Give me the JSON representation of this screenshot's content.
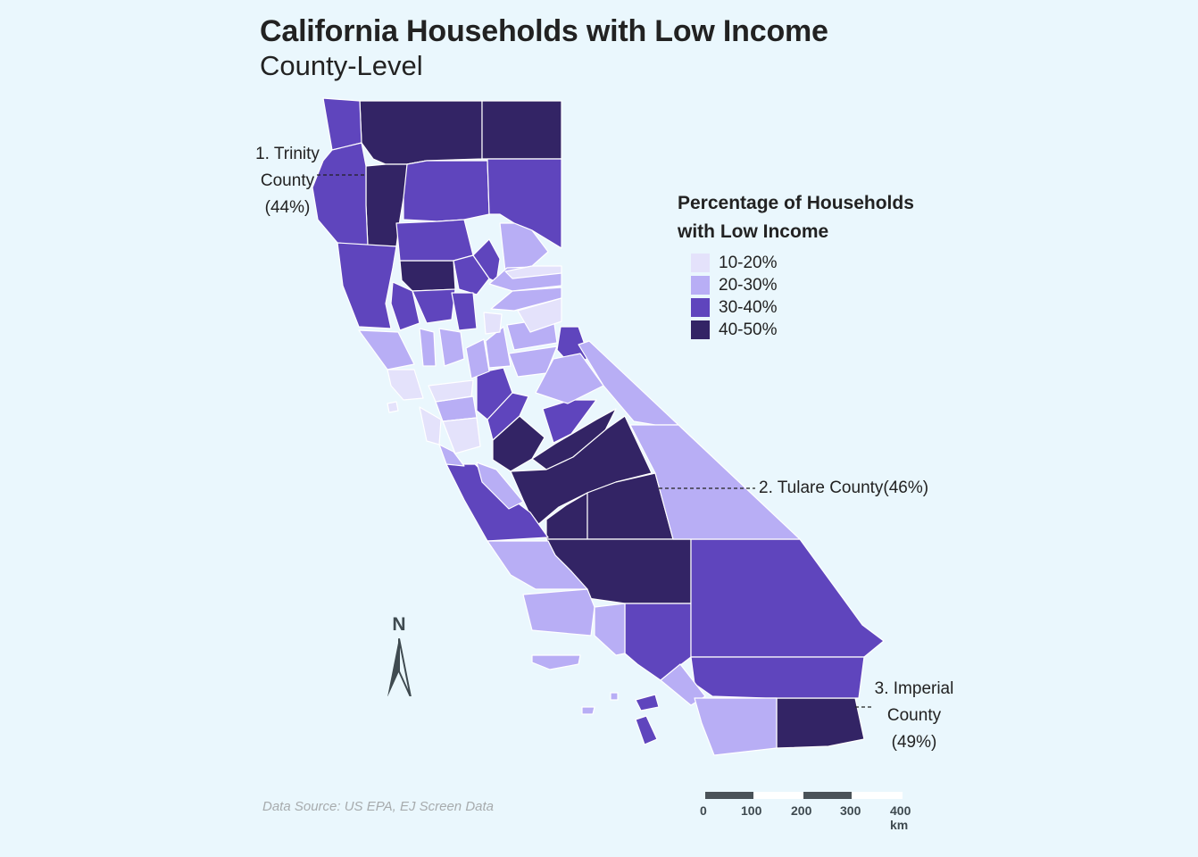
{
  "title": "California Households with Low Income",
  "subtitle": "County-Level",
  "legend": {
    "title_line1": "Percentage of Households",
    "title_line2": "with Low Income",
    "items": [
      {
        "label": "10-20%",
        "color": "#e4e2fb"
      },
      {
        "label": "20-30%",
        "color": "#b8aef5"
      },
      {
        "label": "30-40%",
        "color": "#5f45bd"
      },
      {
        "label": "40-50%",
        "color": "#332465"
      }
    ]
  },
  "annotations": [
    {
      "lines": [
        "1. Trinity",
        "County",
        "(44%)"
      ]
    },
    {
      "lines": [
        "2. Tulare County(46%)"
      ]
    },
    {
      "lines": [
        "3. Imperial",
        "County",
        "(49%)"
      ]
    }
  ],
  "source": "Data Source: US EPA, EJ Screen Data",
  "north_arrow": {
    "label": "N"
  },
  "scale_bar": {
    "labels": [
      "0",
      "100",
      "200",
      "300",
      "400 km"
    ]
  },
  "colors": {
    "background": "#eaf7fd",
    "border": "#ffffff"
  }
}
